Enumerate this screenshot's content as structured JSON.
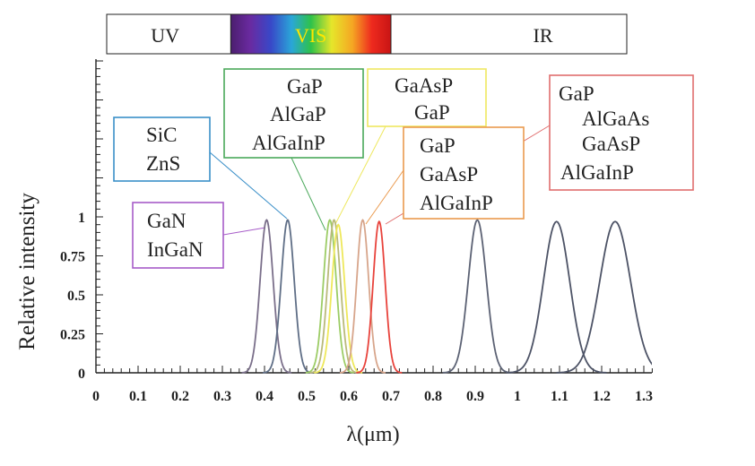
{
  "chart_data": {
    "type": "line",
    "xlabel": "λ(μm)",
    "ylabel": "Relative  intensity",
    "xlim": [
      0,
      1.32
    ],
    "ylim": [
      0,
      1
    ],
    "x_ticks": [
      "0",
      "0.1",
      "0.2",
      "0.3",
      "0.4",
      "0.5",
      "0.6",
      "0.7",
      "0.8",
      "0.9",
      "1",
      "1.1",
      "1.2",
      "1.3"
    ],
    "y_ticks": [
      "0",
      "0.25",
      "0.5",
      "0.75",
      "1"
    ],
    "spectrum_bands": [
      {
        "label": "UV",
        "from": 0,
        "to": 0.32
      },
      {
        "label": "VIS",
        "from": 0.32,
        "to": 0.7
      },
      {
        "label": "IR",
        "from": 0.7,
        "to": 1.3
      }
    ],
    "series": [
      {
        "peak": 0.405,
        "width": 0.072,
        "height": 0.98,
        "color": "#7a6f8a"
      },
      {
        "peak": 0.455,
        "width": 0.072,
        "height": 0.98,
        "color": "#5f6e86"
      },
      {
        "peak": 0.555,
        "width": 0.07,
        "height": 0.98,
        "color": "#9ccc65"
      },
      {
        "peak": 0.565,
        "width": 0.07,
        "height": 0.98,
        "color": "#b9ba7a"
      },
      {
        "peak": 0.575,
        "width": 0.07,
        "height": 0.95,
        "color": "#eee85a"
      },
      {
        "peak": 0.633,
        "width": 0.066,
        "height": 0.98,
        "color": "#d7a58b"
      },
      {
        "peak": 0.672,
        "width": 0.066,
        "height": 0.97,
        "color": "#e8433c"
      },
      {
        "peak": 0.905,
        "width": 0.1,
        "height": 0.98,
        "color": "#5c6274"
      },
      {
        "peak": 1.093,
        "width": 0.145,
        "height": 0.97,
        "color": "#4d5366"
      },
      {
        "peak": 1.232,
        "width": 0.17,
        "height": 0.97,
        "color": "#4d5366"
      }
    ],
    "annotations": [
      {
        "lines": [
          "SiC",
          "ZnS"
        ],
        "color": "#3a8fc8"
      },
      {
        "lines": [
          "GaN",
          "InGaN"
        ],
        "color": "#a65bc8"
      },
      {
        "lines": [
          "GaP",
          "AlGaP",
          "AlGaInP"
        ],
        "color": "#4aa85a"
      },
      {
        "lines": [
          "GaAsP",
          "GaP"
        ],
        "color": "#eee860"
      },
      {
        "lines": [
          "GaP",
          "GaAsP",
          "AlGaInP"
        ],
        "color": "#ea9a4e"
      },
      {
        "lines": [
          "GaP",
          "AlGaAs",
          "GaAsP",
          "AlGaInP"
        ],
        "color": "#e06e6e"
      }
    ]
  }
}
